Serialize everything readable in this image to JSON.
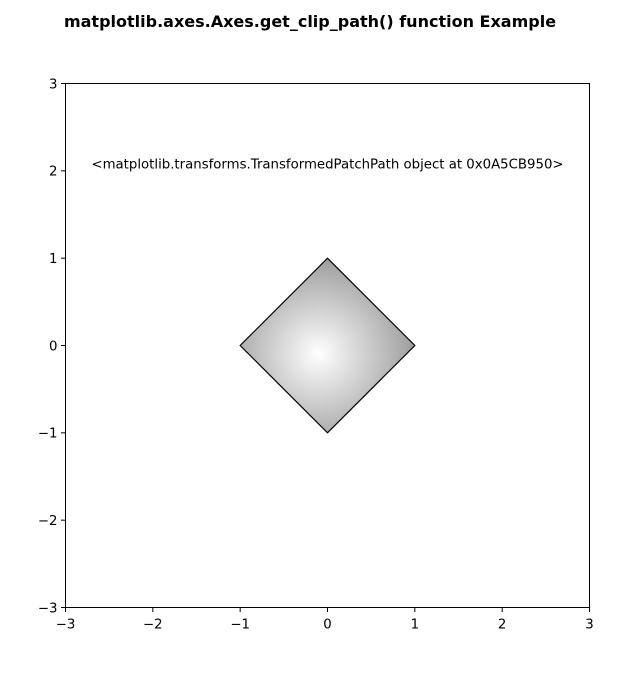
{
  "chart_data": {
    "type": "scatter",
    "title": "matplotlib.axes.Axes.get_clip_path() function Example",
    "xlabel": "",
    "ylabel": "",
    "xlim": [
      -3,
      3
    ],
    "ylim": [
      -3,
      3
    ],
    "xticks": [
      -3,
      -2,
      -1,
      0,
      1,
      2,
      3
    ],
    "yticks": [
      -3,
      -2,
      -1,
      0,
      1,
      2,
      3
    ],
    "xtick_labels": [
      "−3",
      "−2",
      "−1",
      "0",
      "1",
      "2",
      "3"
    ],
    "ytick_labels": [
      "−3",
      "−2",
      "−1",
      "0",
      "1",
      "2",
      "3"
    ],
    "grid": false,
    "clip_shape": {
      "shape": "diamond",
      "vertices": [
        [
          0,
          1
        ],
        [
          1,
          0
        ],
        [
          0,
          -1
        ],
        [
          -1,
          0
        ]
      ],
      "fill": "radial gradient",
      "gradient_center": [
        -0.1,
        -0.1
      ],
      "colors": [
        "#ffffff",
        "#808080"
      ],
      "edge_color": "#000000"
    },
    "annotation": {
      "text": "<matplotlib.transforms.TransformedPatchPath object at 0x0A5CB950>",
      "x": 0,
      "y": 2.05
    }
  }
}
